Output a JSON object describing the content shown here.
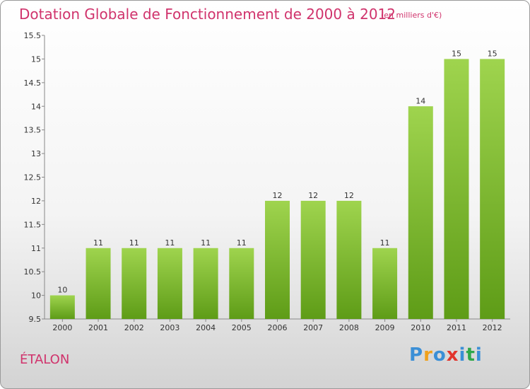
{
  "header": {
    "title": "Dotation Globale de Fonctionnement de 2000 à 2012",
    "unit": "(en milliers d'€)"
  },
  "footer": {
    "place": "ÉTALON",
    "logo_text": "Proxiti"
  },
  "colors": {
    "title": "#d0336c",
    "bar_top": "#9fd44e",
    "bar_bottom": "#5e9c17",
    "logo": [
      "#3b8fd6",
      "#f0a11c",
      "#3b8fd6",
      "#e2342c",
      "#3b8fd6",
      "#2fa84a",
      "#3b8fd6"
    ]
  },
  "chart_data": {
    "type": "bar",
    "categories": [
      "2000",
      "2001",
      "2002",
      "2003",
      "2004",
      "2005",
      "2006",
      "2007",
      "2008",
      "2009",
      "2010",
      "2011",
      "2012"
    ],
    "values": [
      10,
      11,
      11,
      11,
      11,
      11,
      12,
      12,
      12,
      11,
      14,
      15,
      15
    ],
    "ylim": [
      9.5,
      15.5
    ],
    "yticks": [
      9.5,
      10,
      10.5,
      11,
      11.5,
      12,
      12.5,
      13,
      13.5,
      14,
      14.5,
      15,
      15.5
    ],
    "ytick_labels": [
      "9.5",
      "10",
      "10.5",
      "11",
      "11.5",
      "12",
      "12.5",
      "13",
      "13.5",
      "14",
      "14.5",
      "15",
      "15.5"
    ],
    "grid": false,
    "legend": "none"
  }
}
